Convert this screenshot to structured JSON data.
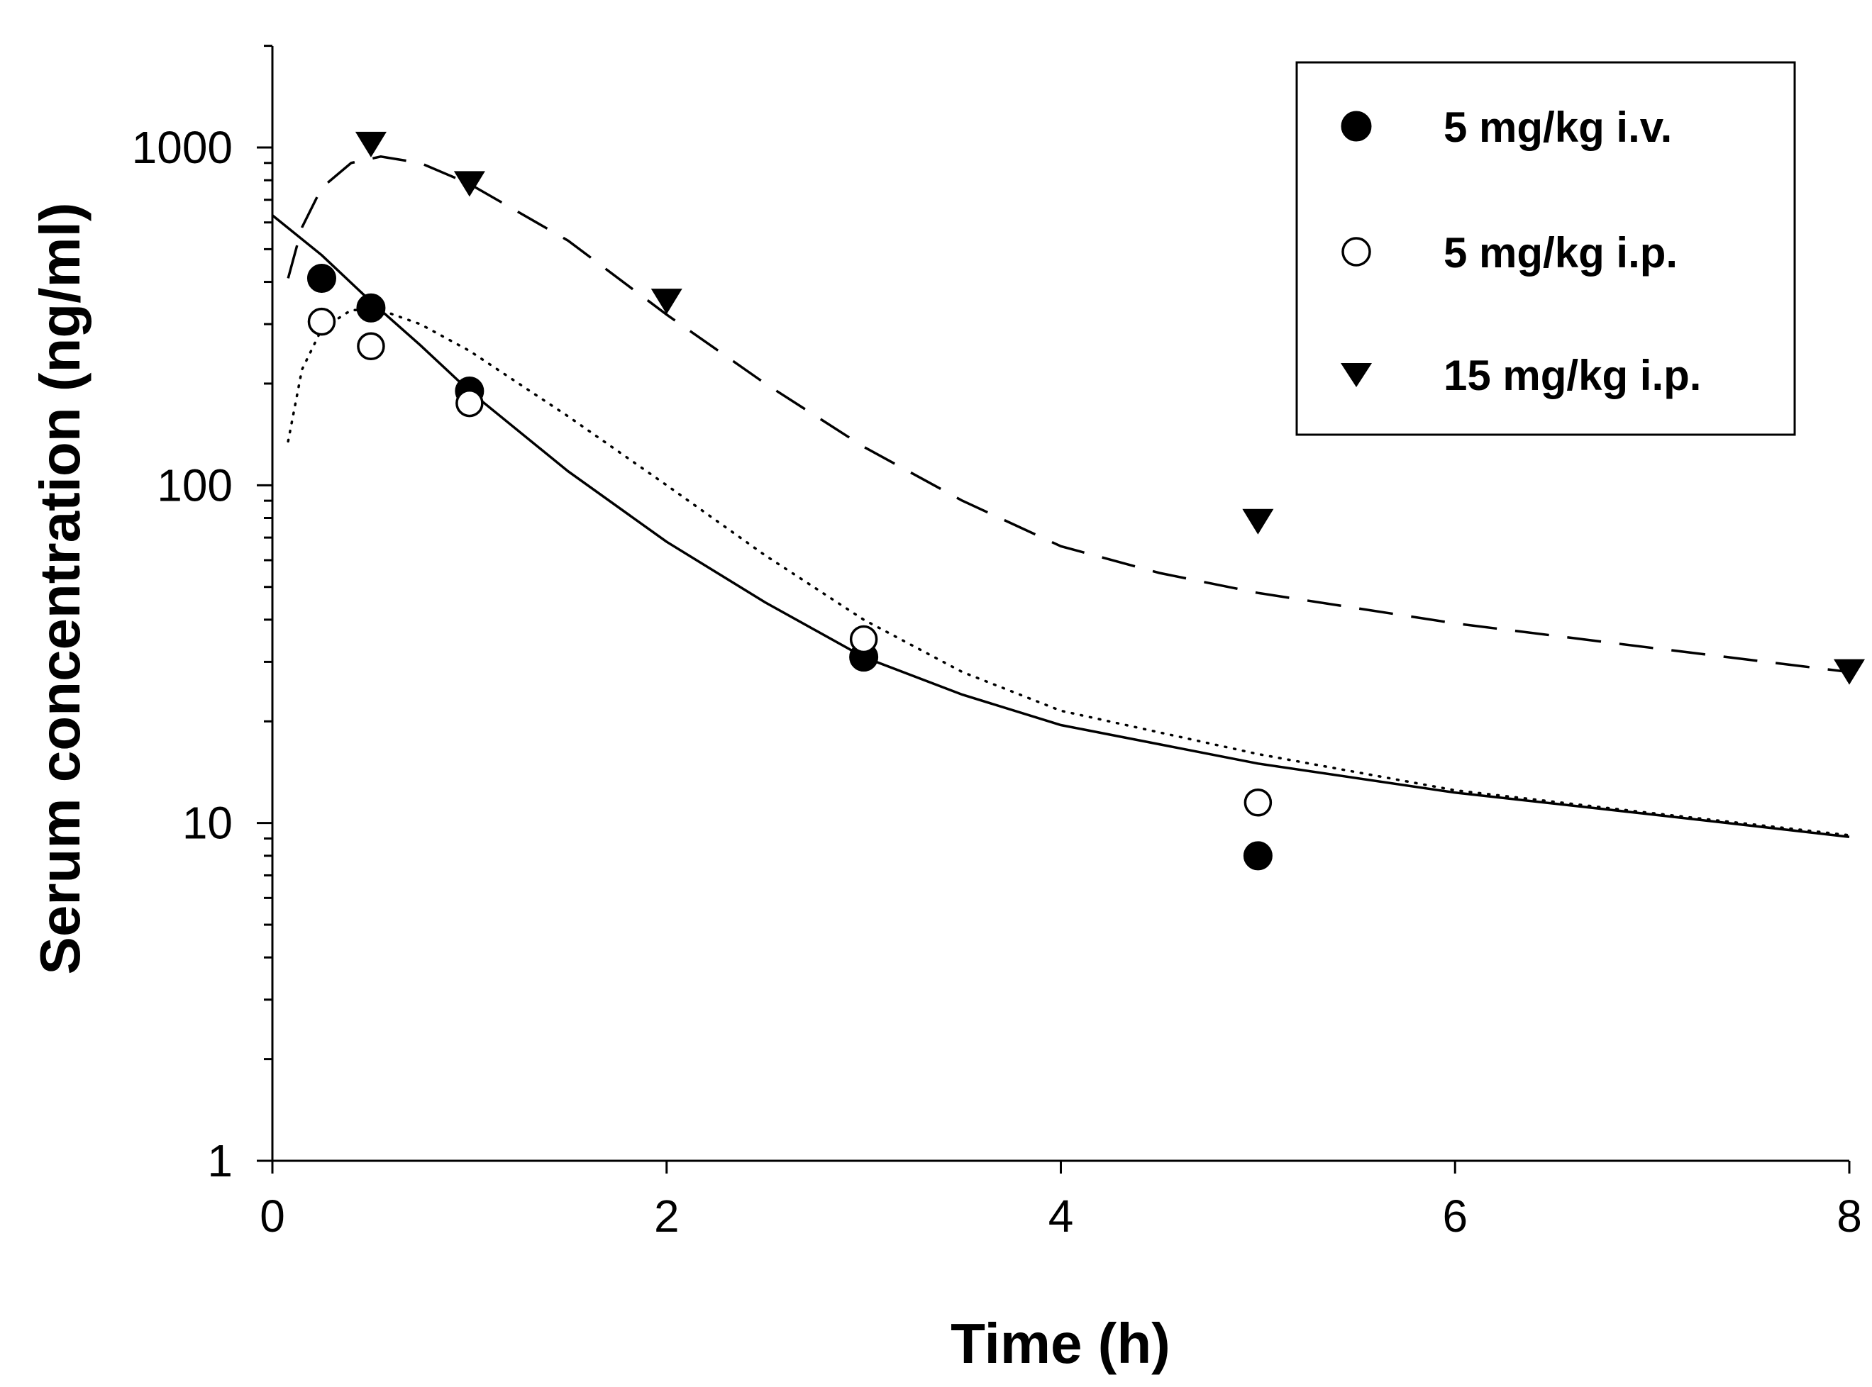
{
  "chart_data": {
    "type": "scatter",
    "title": "",
    "xlabel": "Time (h)",
    "ylabel": "Serum concentration (ng/ml)",
    "xlim": [
      0,
      8
    ],
    "ylim": [
      1,
      2000
    ],
    "yscale": "log",
    "x_ticks": [
      0,
      2,
      4,
      6,
      8
    ],
    "x_tick_labels": [
      "0",
      "2",
      "4",
      "6",
      "8"
    ],
    "y_major_ticks": [
      1,
      10,
      100,
      1000
    ],
    "y_tick_labels": [
      "1",
      "10",
      "100",
      "1000"
    ],
    "grid": false,
    "legend_position": "top-right",
    "series": [
      {
        "name": "5 mg/kg i.v.",
        "marker": "filled-circle",
        "line_style": "solid",
        "points": [
          {
            "x": 0.25,
            "y": 410
          },
          {
            "x": 0.5,
            "y": 335
          },
          {
            "x": 1,
            "y": 190
          },
          {
            "x": 3,
            "y": 31
          },
          {
            "x": 5,
            "y": 8
          }
        ],
        "fit": [
          {
            "x": 0.0,
            "y": 630
          },
          {
            "x": 0.25,
            "y": 480
          },
          {
            "x": 0.5,
            "y": 350
          },
          {
            "x": 0.75,
            "y": 260
          },
          {
            "x": 1.0,
            "y": 190
          },
          {
            "x": 1.5,
            "y": 110
          },
          {
            "x": 2.0,
            "y": 68
          },
          {
            "x": 2.5,
            "y": 45
          },
          {
            "x": 3.0,
            "y": 31
          },
          {
            "x": 3.5,
            "y": 24
          },
          {
            "x": 4.0,
            "y": 19.5
          },
          {
            "x": 5.0,
            "y": 15
          },
          {
            "x": 6.0,
            "y": 12.3
          },
          {
            "x": 7.0,
            "y": 10.6
          },
          {
            "x": 8.0,
            "y": 9.1
          }
        ]
      },
      {
        "name": "5 mg/kg i.p.",
        "marker": "open-circle",
        "line_style": "dotted",
        "points": [
          {
            "x": 0.25,
            "y": 305
          },
          {
            "x": 0.5,
            "y": 258
          },
          {
            "x": 1,
            "y": 175
          },
          {
            "x": 3,
            "y": 35
          },
          {
            "x": 5,
            "y": 11.5
          }
        ],
        "fit": [
          {
            "x": 0.08,
            "y": 135
          },
          {
            "x": 0.15,
            "y": 220
          },
          {
            "x": 0.25,
            "y": 290
          },
          {
            "x": 0.4,
            "y": 330
          },
          {
            "x": 0.55,
            "y": 330
          },
          {
            "x": 0.75,
            "y": 300
          },
          {
            "x": 1.0,
            "y": 250
          },
          {
            "x": 1.5,
            "y": 160
          },
          {
            "x": 2.0,
            "y": 100
          },
          {
            "x": 2.5,
            "y": 62
          },
          {
            "x": 3.0,
            "y": 40
          },
          {
            "x": 3.5,
            "y": 28
          },
          {
            "x": 4.0,
            "y": 21.5
          },
          {
            "x": 5.0,
            "y": 16
          },
          {
            "x": 6.0,
            "y": 12.5
          },
          {
            "x": 7.0,
            "y": 10.7
          },
          {
            "x": 8.0,
            "y": 9.2
          }
        ]
      },
      {
        "name": "15 mg/kg i.p.",
        "marker": "filled-triangle-down",
        "line_style": "dashed",
        "points": [
          {
            "x": 0.5,
            "y": 1020
          },
          {
            "x": 1,
            "y": 780
          },
          {
            "x": 2,
            "y": 350
          },
          {
            "x": 5,
            "y": 78
          },
          {
            "x": 8,
            "y": 28
          }
        ],
        "fit": [
          {
            "x": 0.08,
            "y": 410
          },
          {
            "x": 0.15,
            "y": 580
          },
          {
            "x": 0.25,
            "y": 760
          },
          {
            "x": 0.4,
            "y": 900
          },
          {
            "x": 0.55,
            "y": 940
          },
          {
            "x": 0.75,
            "y": 900
          },
          {
            "x": 1.0,
            "y": 780
          },
          {
            "x": 1.5,
            "y": 530
          },
          {
            "x": 2.0,
            "y": 320
          },
          {
            "x": 2.5,
            "y": 200
          },
          {
            "x": 3.0,
            "y": 130
          },
          {
            "x": 3.5,
            "y": 90
          },
          {
            "x": 4.0,
            "y": 66
          },
          {
            "x": 4.5,
            "y": 55
          },
          {
            "x": 5.0,
            "y": 48
          },
          {
            "x": 6.0,
            "y": 39
          },
          {
            "x": 7.0,
            "y": 33
          },
          {
            "x": 8.0,
            "y": 28
          }
        ]
      }
    ]
  }
}
